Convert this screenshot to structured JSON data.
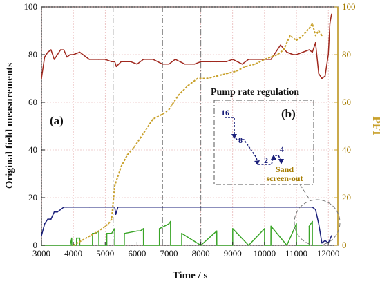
{
  "chart_data": {
    "type": "line",
    "xlabel": "Time / s",
    "ylabel_left": "Original field measurements",
    "ylabel_right": "PFI",
    "xlim": [
      3000,
      12300
    ],
    "ylim_left": [
      0,
      100
    ],
    "ylim_right": [
      0,
      100
    ],
    "x_ticks": [
      "3000",
      "4000",
      "5000",
      "6000",
      "7000",
      "8000",
      "9000",
      "10000",
      "11000",
      "12000"
    ],
    "y_ticks_left": [
      "0",
      "20",
      "40",
      "60",
      "80",
      "100"
    ],
    "y_ticks_right": [
      "0",
      "20",
      "40",
      "60",
      "80",
      "100"
    ],
    "grid": true,
    "vlines_x": [
      5250,
      6800,
      8000
    ],
    "colors": {
      "red_series": "#a0281e",
      "blue_series": "#1a1f7a",
      "green_series": "#3aa528",
      "gold_series": "#c8a02a",
      "right_axis": "#c8a02a",
      "grid": "#e0a0a0",
      "vline": "#777777"
    },
    "series": [
      {
        "axis": "left",
        "color": "red",
        "x": [
          3000,
          3100,
          3200,
          3300,
          3400,
          3500,
          3600,
          3700,
          3800,
          3900,
          4000,
          4200,
          4500,
          4800,
          5000,
          5200,
          5300,
          5350,
          5500,
          5800,
          6000,
          6200,
          6500,
          6800,
          7000,
          7200,
          7500,
          7800,
          8000,
          8300,
          8500,
          8800,
          9000,
          9300,
          9500,
          9800,
          10000,
          10200,
          10500,
          10700,
          10900,
          11000,
          11200,
          11400,
          11500,
          11600,
          11700,
          11800,
          11900,
          12000,
          12050,
          12100
        ],
        "values": [
          70,
          79,
          81,
          82,
          78,
          80,
          82,
          82,
          79,
          80,
          80,
          81,
          78,
          78,
          78,
          77,
          77,
          75,
          77,
          77,
          76,
          78,
          78,
          76,
          76,
          78,
          76,
          76,
          77,
          77,
          77,
          77,
          78,
          76,
          78,
          78,
          78,
          78,
          84,
          81,
          80,
          80,
          81,
          82,
          81,
          85,
          72,
          70,
          71,
          80,
          93,
          97
        ]
      },
      {
        "axis": "left",
        "color": "blue",
        "x": [
          3000,
          3100,
          3200,
          3300,
          3400,
          3500,
          3600,
          3700,
          3800,
          4000,
          4500,
          5000,
          5200,
          5300,
          5330,
          5400,
          6000,
          7000,
          8000,
          9000,
          10000,
          11000,
          11500,
          11600,
          11700,
          11800,
          11900,
          12000,
          12100
        ],
        "values": [
          4,
          9,
          11,
          11,
          14,
          14,
          15,
          16,
          16,
          16,
          16,
          16,
          16,
          16,
          13,
          16,
          16,
          16,
          16,
          16,
          16,
          16,
          16,
          15,
          9,
          1,
          2,
          1,
          4
        ]
      },
      {
        "axis": "left",
        "color": "green",
        "x": [
          3000,
          3900,
          3950,
          3951,
          4000,
          4100,
          4101,
          4200,
          4201,
          4600,
          4601,
          4700,
          4800,
          4801,
          5000,
          5050,
          5051,
          5200,
          5300,
          5301,
          5600,
          5601,
          6000,
          6100,
          6200,
          6201,
          6700,
          6701,
          7000,
          7050,
          7051,
          7400,
          7401,
          8000,
          8001,
          8500,
          8501,
          9000,
          9001,
          9500,
          9501,
          10000,
          10001,
          10200,
          10201,
          10700,
          10701,
          11000,
          11001,
          11400,
          11401,
          11500,
          11501,
          11700,
          11800
        ],
        "values": [
          0,
          0,
          3,
          0,
          0,
          0,
          3,
          3,
          0,
          0,
          5,
          5,
          6,
          0,
          0,
          0,
          5,
          5,
          7,
          0,
          0,
          5,
          6,
          6,
          7,
          0,
          0,
          7,
          9,
          10,
          0,
          0,
          5,
          0,
          0,
          6,
          0,
          0,
          7,
          0,
          0,
          7,
          0,
          0,
          8,
          0,
          0,
          9,
          0,
          0,
          8,
          10,
          0,
          0,
          0
        ]
      },
      {
        "axis": "right",
        "color": "gold",
        "x": [
          4000,
          4400,
          4800,
          5000,
          5100,
          5200,
          5300,
          5500,
          5700,
          5900,
          6100,
          6300,
          6500,
          6800,
          7000,
          7100,
          7300,
          7600,
          7900,
          8200,
          8500,
          8800,
          9100,
          9400,
          9700,
          10000,
          10200,
          10400,
          10600,
          10800,
          11000,
          11200,
          11400,
          11500,
          11600,
          11700,
          11800
        ],
        "values": [
          0,
          3,
          6,
          8,
          9,
          11,
          25,
          33,
          38,
          41,
          45,
          49,
          53,
          55,
          57,
          59,
          63,
          67,
          70,
          70,
          71,
          72,
          73,
          75,
          76,
          78,
          79,
          80,
          82,
          88,
          86,
          88,
          91,
          93,
          88,
          90,
          88
        ]
      }
    ],
    "annotations": {
      "panel_a": "(a)",
      "panel_b": "(b)",
      "inset_title": "Pump rate regulation",
      "inset_steps": [
        "16",
        "8",
        "2",
        "4"
      ],
      "inset_label_line1": "Sand",
      "inset_label_line2": "screen-out"
    }
  }
}
